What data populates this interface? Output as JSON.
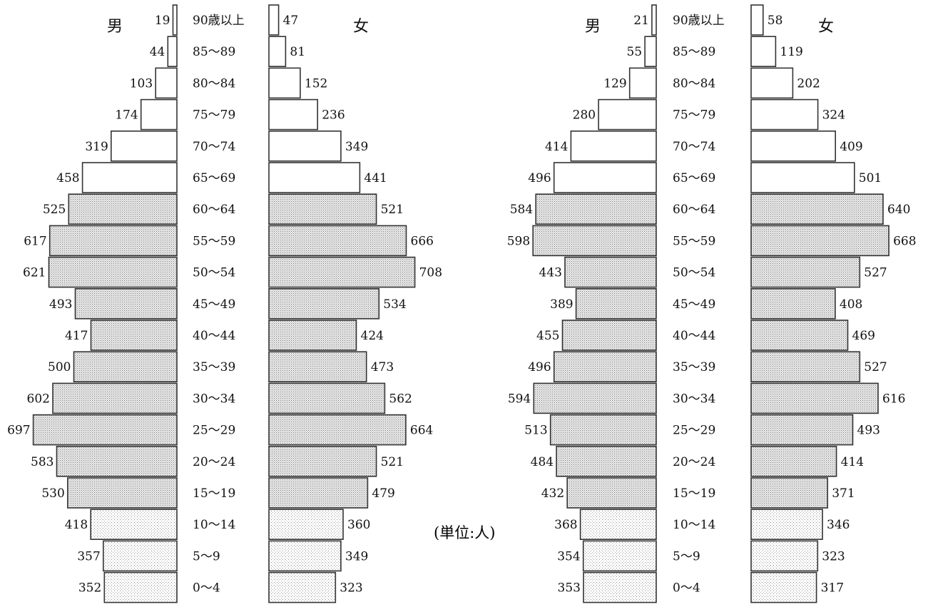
{
  "unit_label": "(単位:人)",
  "colors": {
    "young": "#eeeeee",
    "mid": "#d6d6d6",
    "old": "#ffffff",
    "stroke": "#333333",
    "dots": "#8a8a8a"
  },
  "chart_data": [
    {
      "type": "bar",
      "title": "",
      "male_label": "男",
      "female_label": "女",
      "categories": [
        "90歳以上",
        "85〜89",
        "80〜84",
        "75〜79",
        "70〜74",
        "65〜69",
        "60〜64",
        "55〜59",
        "50〜54",
        "45〜49",
        "40〜44",
        "35〜39",
        "30〜34",
        "25〜29",
        "20〜24",
        "15〜19",
        "10〜14",
        "5〜9",
        "0〜4"
      ],
      "series": [
        {
          "name": "男",
          "values": [
            19,
            44,
            103,
            174,
            319,
            458,
            525,
            617,
            621,
            493,
            417,
            500,
            602,
            697,
            583,
            530,
            418,
            357,
            352
          ]
        },
        {
          "name": "女",
          "values": [
            47,
            81,
            152,
            236,
            349,
            441,
            521,
            666,
            708,
            534,
            424,
            473,
            562,
            664,
            521,
            479,
            360,
            349,
            323
          ]
        }
      ]
    },
    {
      "type": "bar",
      "title": "",
      "male_label": "男",
      "female_label": "女",
      "categories": [
        "90歳以上",
        "85〜89",
        "80〜84",
        "75〜79",
        "70〜74",
        "65〜69",
        "60〜64",
        "55〜59",
        "50〜54",
        "45〜49",
        "40〜44",
        "35〜39",
        "30〜34",
        "25〜29",
        "20〜24",
        "15〜19",
        "10〜14",
        "5〜9",
        "0〜4"
      ],
      "series": [
        {
          "name": "男",
          "values": [
            21,
            55,
            129,
            280,
            414,
            496,
            584,
            598,
            443,
            389,
            455,
            496,
            594,
            513,
            484,
            432,
            368,
            354,
            353
          ]
        },
        {
          "name": "女",
          "values": [
            58,
            119,
            202,
            324,
            409,
            501,
            640,
            668,
            527,
            408,
            469,
            527,
            616,
            493,
            414,
            371,
            346,
            323,
            317
          ]
        }
      ]
    }
  ]
}
